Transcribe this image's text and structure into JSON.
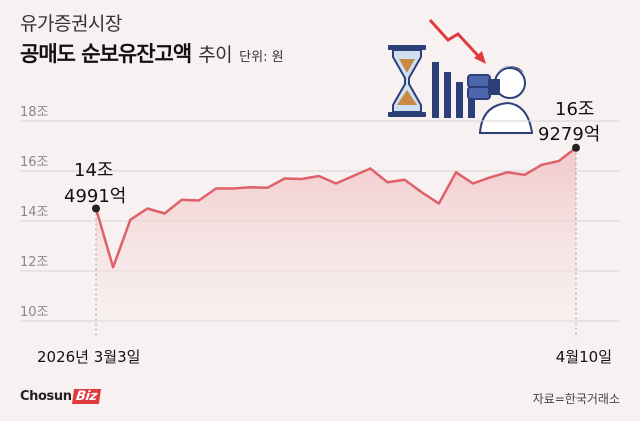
{
  "header": {
    "subtitle": "유가증권시장",
    "title": "공매도 순보유잔고액",
    "title_suffix": "추이",
    "unit": "단위: 원"
  },
  "annotations": {
    "start_line1": "14조",
    "start_line2": "4991억",
    "end_line1": "16조",
    "end_line2": "9279억"
  },
  "footer": {
    "brand_main": "Chosun",
    "brand_tag": "Biz",
    "source": "자료=한국거래소"
  },
  "colors": {
    "line": "#e0606a",
    "area": "#f2c6c8",
    "accent": "#e03a3e"
  },
  "illustration": [
    "hourglass-icon",
    "bar-chart-down-icon",
    "binoculars-person-icon"
  ],
  "chart_data": {
    "type": "area",
    "ylim": [
      10,
      18
    ],
    "yticks": [
      10,
      12,
      14,
      16,
      18
    ],
    "ytick_labels": [
      "10조",
      "12조",
      "14조",
      "16조",
      "18조"
    ],
    "x_labels": [
      "2026년 3월3일",
      "4월10일"
    ],
    "grid": true,
    "series": [
      {
        "values": [
          14.5,
          12.15,
          14.05,
          14.5,
          14.3,
          14.85,
          14.82,
          15.3,
          15.3,
          15.35,
          15.33,
          15.7,
          15.68,
          15.8,
          15.5,
          15.8,
          16.1,
          15.55,
          15.65,
          15.15,
          14.7,
          15.95,
          15.5,
          15.75,
          15.95,
          15.85,
          16.25,
          16.4,
          16.93
        ]
      }
    ]
  }
}
